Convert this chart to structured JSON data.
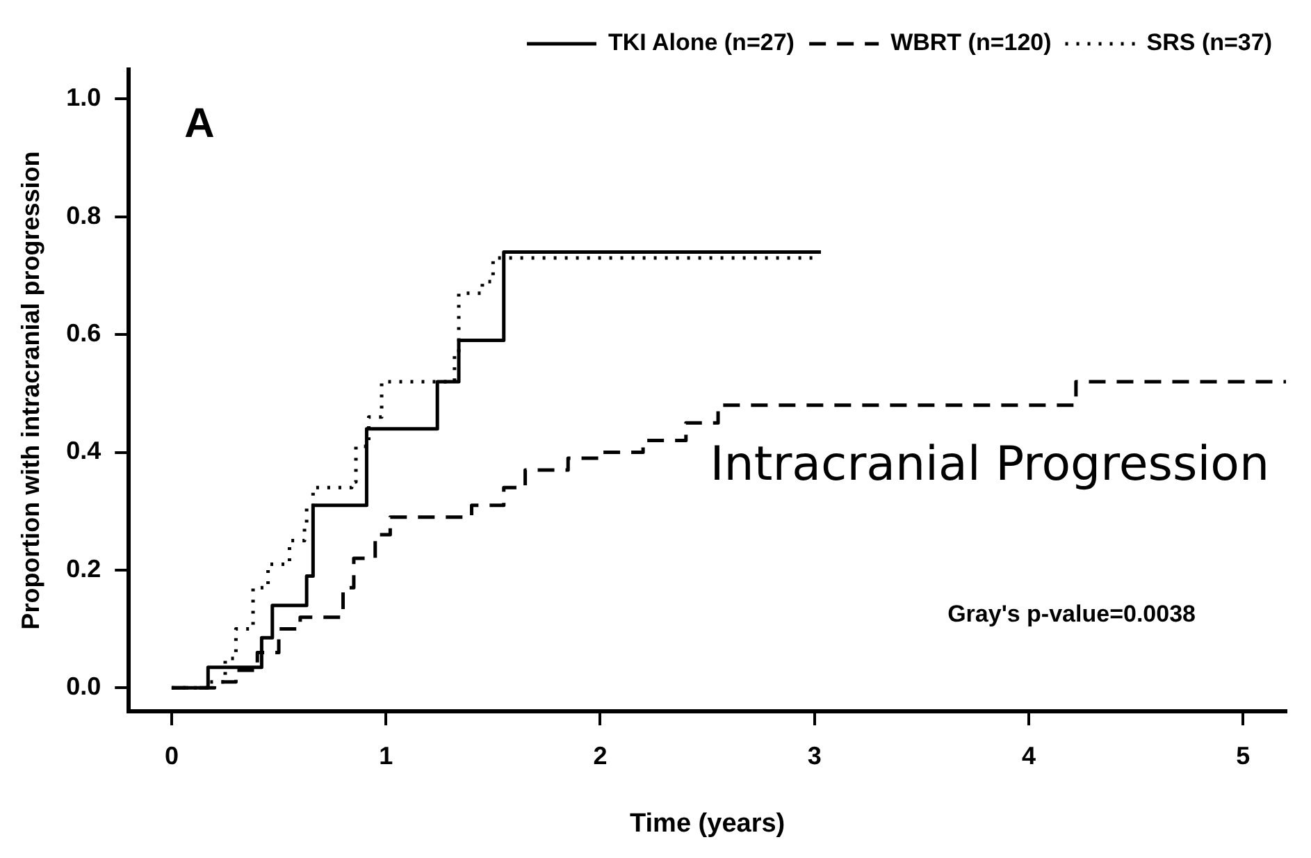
{
  "chart_data": {
    "type": "step",
    "xlabel": "Time (years)",
    "ylabel": "Proportion with intracranial progression",
    "xlim": [
      -0.2,
      5.2
    ],
    "ylim": [
      -0.04,
      1.05
    ],
    "xticks": [
      0,
      1,
      2,
      3,
      4,
      5
    ],
    "yticks": [
      {
        "value": 0,
        "label": "0.0"
      },
      {
        "value": 0.2,
        "label": "0.2"
      },
      {
        "value": 0.4,
        "label": "0.4"
      },
      {
        "value": 0.6,
        "label": "0.6"
      },
      {
        "value": 0.8,
        "label": "0.8"
      },
      {
        "value": 1,
        "label": "1.0"
      }
    ],
    "grid": false,
    "legend": "top right",
    "marker": "none",
    "annotations": [
      "A",
      "Intracranial Progression",
      "Gray's p-value=0.0038"
    ],
    "series": [
      {
        "name": "TKI Alone (n=27)",
        "color": "#000000",
        "line_style": "solid",
        "x": [
          0,
          0.17,
          0.42,
          0.47,
          0.63,
          0.66,
          0.91,
          1.24,
          1.34,
          1.55,
          3.03
        ],
        "values": [
          0,
          0.035,
          0.085,
          0.14,
          0.19,
          0.31,
          0.44,
          0.52,
          0.59,
          0.74,
          0.74
        ]
      },
      {
        "name": "WBRT (n=120)",
        "color": "#000000",
        "line_style": "dashed",
        "x": [
          0,
          0.2,
          0.3,
          0.4,
          0.5,
          0.6,
          0.75,
          0.8,
          0.85,
          0.95,
          1.02,
          1.25,
          1.4,
          1.55,
          1.65,
          1.85,
          2.0,
          2.2,
          2.4,
          2.55,
          4.15,
          4.22,
          5.2
        ],
        "values": [
          0,
          0.01,
          0.03,
          0.06,
          0.1,
          0.12,
          0.12,
          0.17,
          0.22,
          0.26,
          0.29,
          0.29,
          0.31,
          0.34,
          0.37,
          0.39,
          0.4,
          0.42,
          0.45,
          0.48,
          0.48,
          0.52,
          0.52
        ]
      },
      {
        "name": "SRS (n=37)",
        "color": "#000000",
        "line_style": "dotted",
        "x": [
          0,
          0.18,
          0.25,
          0.3,
          0.38,
          0.45,
          0.55,
          0.62,
          0.63,
          0.66,
          0.84,
          0.86,
          0.92,
          0.98,
          1.28,
          1.32,
          1.34,
          1.45,
          1.5,
          3.0
        ],
        "values": [
          0,
          0.01,
          0.05,
          0.1,
          0.17,
          0.21,
          0.25,
          0.28,
          0.31,
          0.34,
          0.35,
          0.41,
          0.46,
          0.52,
          0.52,
          0.57,
          0.67,
          0.69,
          0.73,
          0.73
        ]
      }
    ]
  }
}
